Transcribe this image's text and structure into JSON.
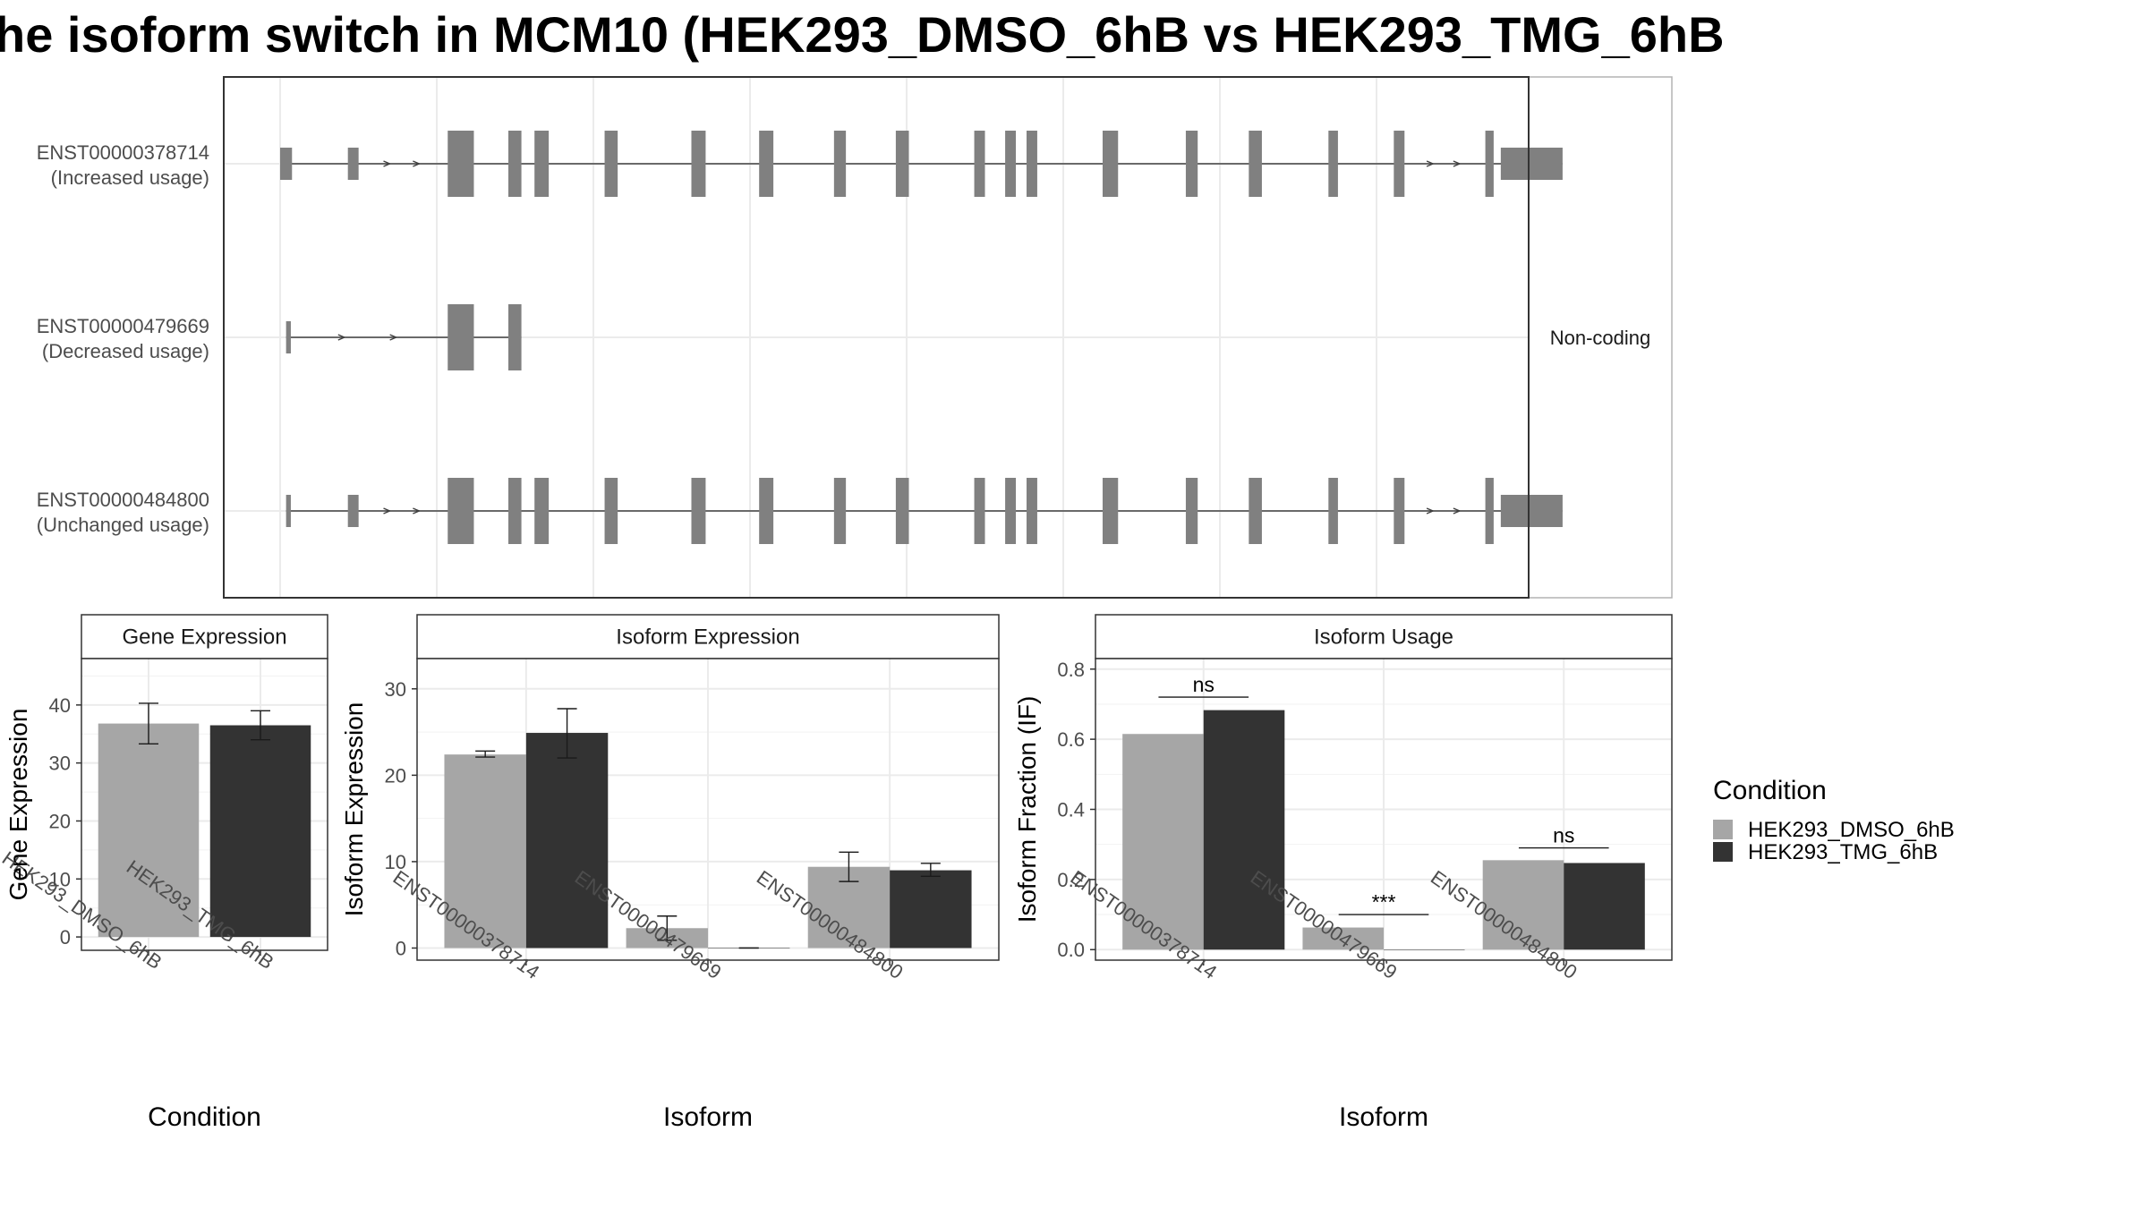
{
  "title": "he isoform switch in MCM10 (HEK293_DMSO_6hB vs HEK293_TMG_6hB",
  "colors": {
    "DMSO": "#a6a6a6",
    "TMG": "#333333",
    "exon": "#808080",
    "grid": "#ebebeb",
    "panel_border": "#333333",
    "strip_border": "#333333",
    "strip_fill": "#ffffff"
  },
  "isoform_structure": {
    "genomic_range": [
      0,
      1000
    ],
    "isoforms": [
      {
        "id": "ENST00000378714",
        "usage_label": "(Increased usage)",
        "coding": true,
        "exons": [
          [
            0,
            10
          ],
          [
            57,
            66
          ],
          [
            141,
            163
          ],
          [
            192,
            203
          ],
          [
            214,
            226
          ],
          [
            273,
            284
          ],
          [
            346,
            358
          ],
          [
            403,
            415
          ],
          [
            466,
            476
          ],
          [
            518,
            529
          ],
          [
            584,
            593
          ],
          [
            610,
            619
          ],
          [
            628,
            637
          ],
          [
            692,
            705
          ],
          [
            762,
            772
          ],
          [
            815,
            826
          ],
          [
            882,
            890
          ],
          [
            937,
            946
          ],
          [
            1014,
            1021
          ],
          [
            1027,
            1079
          ]
        ],
        "utr": [
          [
            0,
            10
          ],
          [
            57,
            66
          ],
          [
            1027,
            1079
          ]
        ]
      },
      {
        "id": "ENST00000479669",
        "usage_label": "(Decreased usage)",
        "coding": false,
        "exons": [
          [
            5,
            9
          ],
          [
            141,
            163
          ],
          [
            192,
            203
          ]
        ],
        "utr": [
          [
            5,
            9
          ]
        ],
        "side_label": "Non-coding"
      },
      {
        "id": "ENST00000484800",
        "usage_label": "(Unchanged usage)",
        "coding": true,
        "exons": [
          [
            5,
            9
          ],
          [
            57,
            66
          ],
          [
            141,
            163
          ],
          [
            192,
            203
          ],
          [
            214,
            226
          ],
          [
            273,
            284
          ],
          [
            346,
            358
          ],
          [
            403,
            415
          ],
          [
            466,
            476
          ],
          [
            518,
            529
          ],
          [
            584,
            593
          ],
          [
            610,
            619
          ],
          [
            628,
            637
          ],
          [
            692,
            705
          ],
          [
            762,
            772
          ],
          [
            815,
            826
          ],
          [
            882,
            890
          ],
          [
            937,
            946
          ],
          [
            1014,
            1021
          ],
          [
            1027,
            1079
          ]
        ],
        "utr": [
          [
            5,
            9
          ],
          [
            57,
            66
          ],
          [
            1027,
            1079
          ]
        ]
      }
    ]
  },
  "chart_data": [
    {
      "type": "bar",
      "title": "Gene Expression",
      "xlabel": "Condition",
      "ylabel": "Gene Expression",
      "categories": [
        "HEK293_DMSO_6hB",
        "HEK293_TMG_6hB"
      ],
      "series": [
        {
          "name": "HEK293_DMSO_6hB",
          "values": [
            36.8,
            null
          ],
          "error": [
            [
              33.3,
              40.3
            ],
            null
          ]
        },
        {
          "name": "HEK293_TMG_6hB",
          "values": [
            null,
            36.5
          ],
          "error": [
            null,
            [
              34.0,
              39.0
            ]
          ]
        }
      ],
      "ylim": [
        -2.3,
        48
      ],
      "yticks": [
        0,
        10,
        20,
        30,
        40
      ]
    },
    {
      "type": "bar",
      "title": "Isoform Expression",
      "xlabel": "Isoform",
      "ylabel": "Isoform Expression",
      "categories": [
        "ENST00000378714",
        "ENST00000479669",
        "ENST00000484800"
      ],
      "series": [
        {
          "name": "HEK293_DMSO_6hB",
          "values": [
            22.4,
            2.3,
            9.4
          ],
          "error": [
            [
              22.1,
              22.8
            ],
            [
              0.9,
              3.7
            ],
            [
              7.7,
              11.1
            ]
          ]
        },
        {
          "name": "HEK293_TMG_6hB",
          "values": [
            24.9,
            0.0,
            9.0
          ],
          "error": [
            [
              22.0,
              27.7
            ],
            [
              0.0,
              0.0
            ],
            [
              8.3,
              9.8
            ]
          ]
        }
      ],
      "ylim": [
        -1.4,
        33.5
      ],
      "yticks": [
        0,
        10,
        20,
        30
      ]
    },
    {
      "type": "bar",
      "title": "Isoform Usage",
      "xlabel": "Isoform",
      "ylabel": "Isoform Fraction (IF)",
      "categories": [
        "ENST00000378714",
        "ENST00000479669",
        "ENST00000484800"
      ],
      "series": [
        {
          "name": "HEK293_DMSO_6hB",
          "values": [
            0.615,
            0.063,
            0.255
          ]
        },
        {
          "name": "HEK293_TMG_6hB",
          "values": [
            0.683,
            0.0,
            0.247
          ]
        }
      ],
      "significance": [
        "ns",
        "***",
        "ns"
      ],
      "significance_y": [
        0.72,
        0.1,
        0.29
      ],
      "ylim": [
        -0.03,
        0.83
      ],
      "yticks": [
        0.0,
        0.2,
        0.4,
        0.6,
        0.8
      ],
      "ytick_labels": [
        "0.0",
        "0.2",
        "0.4",
        "0.6",
        "0.8"
      ]
    }
  ],
  "legend": {
    "title": "Condition",
    "entries": [
      "HEK293_DMSO_6hB",
      "HEK293_TMG_6hB"
    ]
  }
}
